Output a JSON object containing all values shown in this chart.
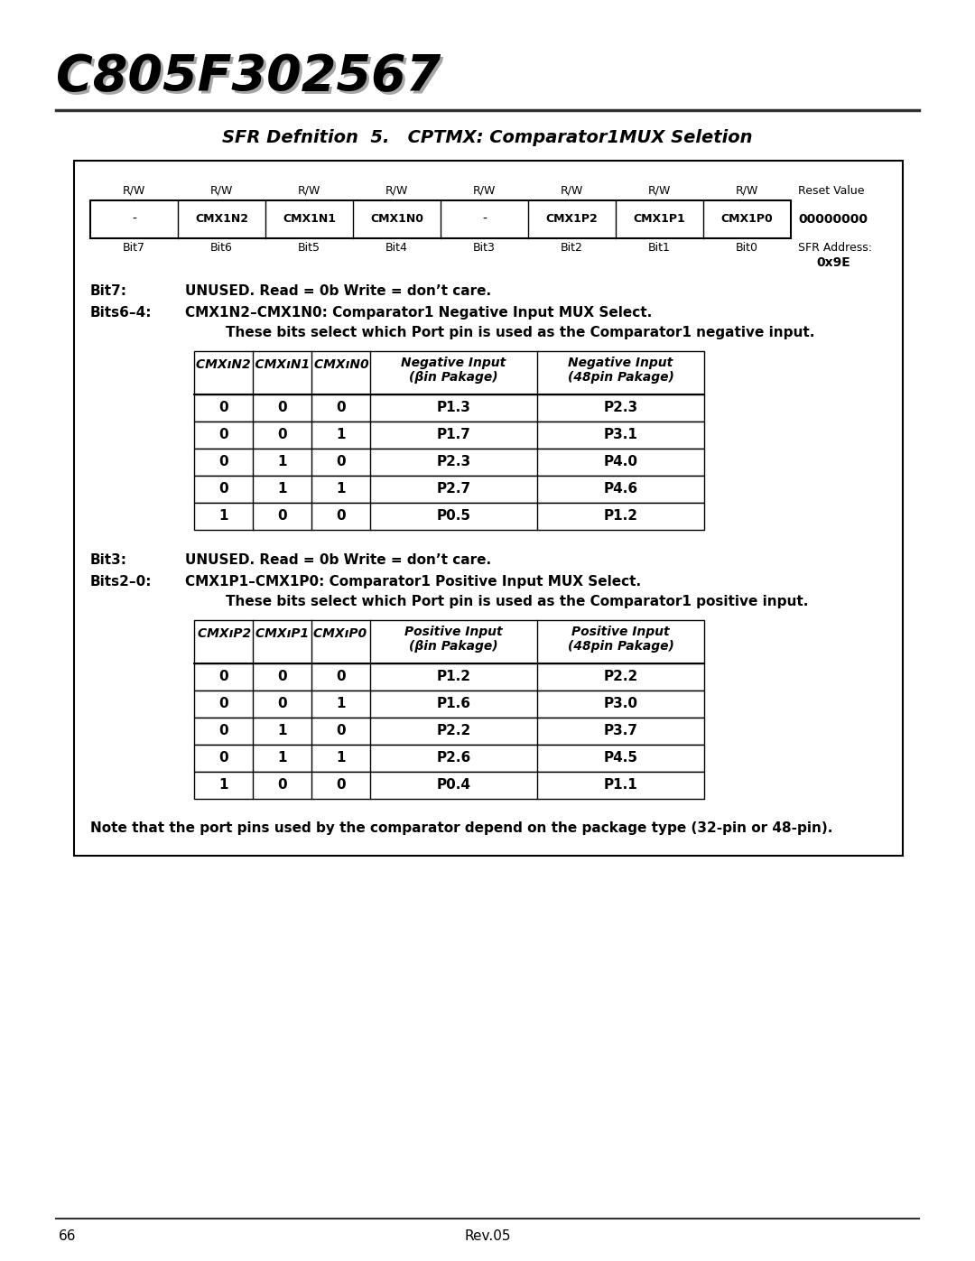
{
  "title_text": "C805F302567",
  "sfr_title": "SFR Defnition  5.   CPTMX: Comparator1MUX Seletion",
  "register_labels": [
    "-",
    "CMX1N2",
    "CMX1N1",
    "CMX1N0",
    "-",
    "CMX1P2",
    "CMX1P1",
    "CMX1P0"
  ],
  "register_rw": [
    "R/W",
    "R/W",
    "R/W",
    "R/W",
    "R/W",
    "R/W",
    "R/W",
    "R/W"
  ],
  "bit_labels": [
    "Bit7",
    "Bit6",
    "Bit5",
    "Bit4",
    "Bit3",
    "Bit2",
    "Bit1",
    "Bit0"
  ],
  "reset_value": "00000000",
  "sfr_address": "0x9E",
  "neg_table_data": [
    [
      "0",
      "0",
      "0",
      "P1.3",
      "P2.3"
    ],
    [
      "0",
      "0",
      "1",
      "P1.7",
      "P3.1"
    ],
    [
      "0",
      "1",
      "0",
      "P2.3",
      "P4.0"
    ],
    [
      "0",
      "1",
      "1",
      "P2.7",
      "P4.6"
    ],
    [
      "1",
      "0",
      "0",
      "P0.5",
      "P1.2"
    ]
  ],
  "pos_table_data": [
    [
      "0",
      "0",
      "0",
      "P1.2",
      "P2.2"
    ],
    [
      "0",
      "0",
      "1",
      "P1.6",
      "P3.0"
    ],
    [
      "0",
      "1",
      "0",
      "P2.2",
      "P3.7"
    ],
    [
      "0",
      "1",
      "1",
      "P2.6",
      "P4.5"
    ],
    [
      "1",
      "0",
      "0",
      "P0.4",
      "P1.1"
    ]
  ],
  "note_text": "Note that the port pins used by the comparator depend on the package type (32-pin or 48-pin).",
  "page_num": "66",
  "rev_text": "Rev.05",
  "bg_color": "#ffffff",
  "text_color": "#000000"
}
